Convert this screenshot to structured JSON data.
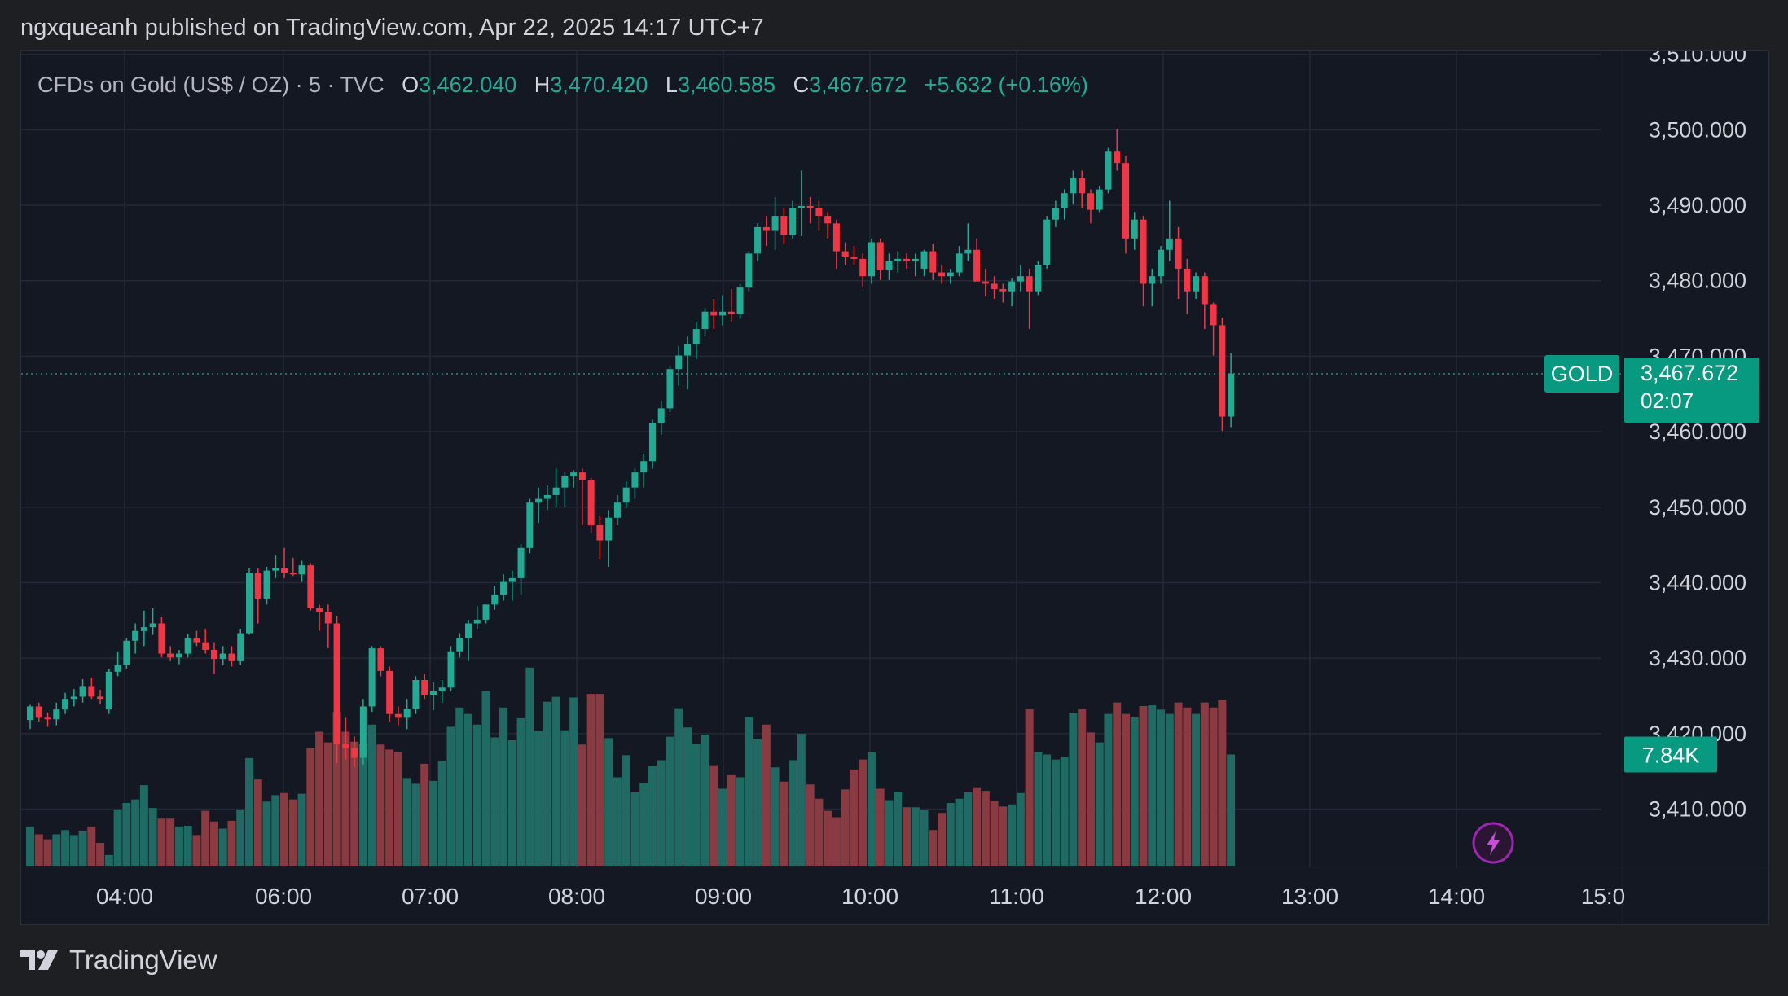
{
  "header": {
    "published_line": "ngxqueanh published on TradingView.com, Apr 22, 2025 14:17 UTC+7"
  },
  "legend": {
    "symbol_desc": "CFDs on Gold (US$ / OZ) · 5 · TVC",
    "open_label": "O",
    "open": "3,462.040",
    "high_label": "H",
    "high": "3,470.420",
    "low_label": "L",
    "low": "3,460.585",
    "close_label": "C",
    "close": "3,467.672",
    "change": "+5.632 (+0.16%)"
  },
  "price_badge": {
    "symbol": "GOLD",
    "price": "3,467.672",
    "countdown": "02:07"
  },
  "volume_badge": {
    "value": "7.84K"
  },
  "footer": {
    "brand": "TradingView"
  },
  "colors": {
    "up": "#22ab94",
    "down": "#f23645",
    "vol_up": "#1f6a63",
    "vol_down": "#8a3a41",
    "grid": "#242936",
    "background": "#141823",
    "axis_text": "#d1d4dc",
    "accent_badge": "#089981",
    "alert_ring": "#9c27b0"
  },
  "icons": {
    "logo": "tradingview-logo-icon",
    "alert": "lightning-bolt-icon"
  },
  "chart_data": {
    "type": "candlestick",
    "symbol": "TVC:GOLD",
    "interval": "5",
    "y_axis": {
      "ticks": [
        "3,410.000",
        "3,420.000",
        "3,430.000",
        "3,440.000",
        "3,450.000",
        "3,460.000",
        "3,470.000",
        "3,480.000",
        "3,490.000",
        "3,500.000",
        "3,510.000"
      ],
      "range": [
        3402.5,
        3510.4
      ]
    },
    "x_axis": {
      "ticks": [
        "04:00",
        "06:00",
        "07:00",
        "08:00",
        "09:00",
        "10:00",
        "11:00",
        "12:00",
        "13:00",
        "14:00",
        "15:0"
      ]
    },
    "last_price": 3467.672,
    "candles": [
      {
        "o": 3421.8,
        "h": 3423.8,
        "l": 3420.6,
        "c": 3423.6,
        "v": 0.55
      },
      {
        "o": 3423.6,
        "h": 3424.1,
        "l": 3421.6,
        "c": 3422.1,
        "v": 0.44
      },
      {
        "o": 3422.1,
        "h": 3422.8,
        "l": 3420.9,
        "c": 3421.9,
        "v": 0.37
      },
      {
        "o": 3421.9,
        "h": 3424.1,
        "l": 3421.1,
        "c": 3423.2,
        "v": 0.44
      },
      {
        "o": 3423.2,
        "h": 3425.4,
        "l": 3422.6,
        "c": 3424.6,
        "v": 0.5
      },
      {
        "o": 3424.6,
        "h": 3425.9,
        "l": 3423.6,
        "c": 3424.9,
        "v": 0.43
      },
      {
        "o": 3424.9,
        "h": 3427.2,
        "l": 3424.1,
        "c": 3426.3,
        "v": 0.48
      },
      {
        "o": 3426.3,
        "h": 3427.4,
        "l": 3424.6,
        "c": 3424.9,
        "v": 0.55
      },
      {
        "o": 3424.9,
        "h": 3425.8,
        "l": 3423.9,
        "c": 3424.6,
        "v": 0.32
      },
      {
        "o": 3423.2,
        "h": 3428.6,
        "l": 3422.6,
        "c": 3428.2,
        "v": 0.15
      },
      {
        "o": 3428.2,
        "h": 3430.9,
        "l": 3427.6,
        "c": 3429.1,
        "v": 0.79
      },
      {
        "o": 3429.1,
        "h": 3432.6,
        "l": 3428.6,
        "c": 3432.3,
        "v": 0.88
      },
      {
        "o": 3432.3,
        "h": 3434.6,
        "l": 3430.6,
        "c": 3433.6,
        "v": 0.93
      },
      {
        "o": 3433.6,
        "h": 3436.3,
        "l": 3431.6,
        "c": 3434.1,
        "v": 1.13
      },
      {
        "o": 3434.1,
        "h": 3436.6,
        "l": 3433.1,
        "c": 3434.6,
        "v": 0.81
      },
      {
        "o": 3434.6,
        "h": 3435.4,
        "l": 3430.1,
        "c": 3430.6,
        "v": 0.66
      },
      {
        "o": 3430.6,
        "h": 3431.6,
        "l": 3429.6,
        "c": 3430.1,
        "v": 0.66
      },
      {
        "o": 3430.1,
        "h": 3431.1,
        "l": 3429.2,
        "c": 3430.6,
        "v": 0.55
      },
      {
        "o": 3430.6,
        "h": 3433.2,
        "l": 3430.1,
        "c": 3432.6,
        "v": 0.56
      },
      {
        "o": 3432.6,
        "h": 3433.6,
        "l": 3431.6,
        "c": 3432.1,
        "v": 0.43
      },
      {
        "o": 3432.1,
        "h": 3433.9,
        "l": 3430.6,
        "c": 3431.1,
        "v": 0.77
      },
      {
        "o": 3431.1,
        "h": 3432.1,
        "l": 3427.9,
        "c": 3429.9,
        "v": 0.62
      },
      {
        "o": 3429.9,
        "h": 3431.6,
        "l": 3429.1,
        "c": 3430.6,
        "v": 0.52
      },
      {
        "o": 3430.6,
        "h": 3431.6,
        "l": 3428.9,
        "c": 3429.6,
        "v": 0.63
      },
      {
        "o": 3429.6,
        "h": 3433.9,
        "l": 3429.1,
        "c": 3433.3,
        "v": 0.79
      },
      {
        "o": 3433.3,
        "h": 3441.9,
        "l": 3433.1,
        "c": 3441.3,
        "v": 1.51
      },
      {
        "o": 3441.3,
        "h": 3441.9,
        "l": 3434.6,
        "c": 3437.9,
        "v": 1.21
      },
      {
        "o": 3437.9,
        "h": 3442.1,
        "l": 3437.1,
        "c": 3441.6,
        "v": 0.9
      },
      {
        "o": 3441.6,
        "h": 3443.6,
        "l": 3440.6,
        "c": 3441.9,
        "v": 0.99
      },
      {
        "o": 3441.9,
        "h": 3444.6,
        "l": 3440.6,
        "c": 3441.3,
        "v": 1.02
      },
      {
        "o": 3441.3,
        "h": 3443.3,
        "l": 3440.9,
        "c": 3441.1,
        "v": 0.93
      },
      {
        "o": 3441.1,
        "h": 3442.9,
        "l": 3440.1,
        "c": 3442.3,
        "v": 1.01
      },
      {
        "o": 3442.3,
        "h": 3442.6,
        "l": 3436.3,
        "c": 3436.6,
        "v": 1.65
      },
      {
        "o": 3436.6,
        "h": 3437.1,
        "l": 3433.6,
        "c": 3436.1,
        "v": 1.88
      },
      {
        "o": 3436.1,
        "h": 3437.1,
        "l": 3431.3,
        "c": 3434.6,
        "v": 1.73
      },
      {
        "o": 3434.6,
        "h": 3435.6,
        "l": 3416.1,
        "c": 3418.6,
        "v": 2.16
      },
      {
        "o": 3418.6,
        "h": 3422.1,
        "l": 3416.6,
        "c": 3418.1,
        "v": 1.88
      },
      {
        "o": 3418.1,
        "h": 3419.6,
        "l": 3415.6,
        "c": 3416.8,
        "v": 1.74
      },
      {
        "o": 3416.8,
        "h": 3424.6,
        "l": 3415.9,
        "c": 3423.6,
        "v": 1.71
      },
      {
        "o": 3423.6,
        "h": 3431.6,
        "l": 3422.9,
        "c": 3431.3,
        "v": 1.98
      },
      {
        "o": 3431.3,
        "h": 3431.6,
        "l": 3427.6,
        "c": 3428.3,
        "v": 1.7
      },
      {
        "o": 3428.3,
        "h": 3428.9,
        "l": 3421.6,
        "c": 3422.6,
        "v": 1.63
      },
      {
        "o": 3422.6,
        "h": 3423.6,
        "l": 3421.1,
        "c": 3422.1,
        "v": 1.59
      },
      {
        "o": 3422.1,
        "h": 3424.6,
        "l": 3420.6,
        "c": 3423.3,
        "v": 1.23
      },
      {
        "o": 3423.3,
        "h": 3427.6,
        "l": 3422.6,
        "c": 3427.1,
        "v": 1.15
      },
      {
        "o": 3427.1,
        "h": 3427.9,
        "l": 3424.6,
        "c": 3425.1,
        "v": 1.43
      },
      {
        "o": 3425.1,
        "h": 3426.8,
        "l": 3423.1,
        "c": 3425.6,
        "v": 1.19
      },
      {
        "o": 3425.6,
        "h": 3427.1,
        "l": 3424.1,
        "c": 3426.1,
        "v": 1.47
      },
      {
        "o": 3426.1,
        "h": 3431.6,
        "l": 3425.6,
        "c": 3430.9,
        "v": 1.95
      },
      {
        "o": 3430.9,
        "h": 3433.3,
        "l": 3430.1,
        "c": 3432.6,
        "v": 2.22
      },
      {
        "o": 3432.6,
        "h": 3435.1,
        "l": 3429.6,
        "c": 3434.6,
        "v": 2.13
      },
      {
        "o": 3434.6,
        "h": 3436.9,
        "l": 3433.9,
        "c": 3435.1,
        "v": 1.98
      },
      {
        "o": 3435.1,
        "h": 3437.1,
        "l": 3434.6,
        "c": 3437.1,
        "v": 2.45
      },
      {
        "o": 3437.1,
        "h": 3439.6,
        "l": 3436.4,
        "c": 3438.4,
        "v": 1.8
      },
      {
        "o": 3438.4,
        "h": 3441.1,
        "l": 3437.6,
        "c": 3440.1,
        "v": 2.22
      },
      {
        "o": 3440.1,
        "h": 3441.6,
        "l": 3437.6,
        "c": 3440.6,
        "v": 1.76
      },
      {
        "o": 3440.6,
        "h": 3445.1,
        "l": 3438.4,
        "c": 3444.6,
        "v": 2.07
      },
      {
        "o": 3444.6,
        "h": 3451.1,
        "l": 3443.9,
        "c": 3450.6,
        "v": 2.78
      },
      {
        "o": 3450.6,
        "h": 3452.6,
        "l": 3447.9,
        "c": 3451.1,
        "v": 1.89
      },
      {
        "o": 3451.1,
        "h": 3452.9,
        "l": 3449.6,
        "c": 3451.6,
        "v": 2.3
      },
      {
        "o": 3451.6,
        "h": 3455.1,
        "l": 3450.1,
        "c": 3452.6,
        "v": 2.37
      },
      {
        "o": 3452.6,
        "h": 3454.6,
        "l": 3450.1,
        "c": 3454.1,
        "v": 1.9
      },
      {
        "o": 3454.1,
        "h": 3454.9,
        "l": 3452.6,
        "c": 3454.6,
        "v": 2.36
      },
      {
        "o": 3454.6,
        "h": 3455.1,
        "l": 3447.6,
        "c": 3453.6,
        "v": 1.7
      },
      {
        "o": 3453.6,
        "h": 3453.9,
        "l": 3446.6,
        "c": 3447.6,
        "v": 2.41
      },
      {
        "o": 3447.6,
        "h": 3448.9,
        "l": 3443.1,
        "c": 3445.6,
        "v": 2.41
      },
      {
        "o": 3445.6,
        "h": 3449.6,
        "l": 3442.1,
        "c": 3448.6,
        "v": 1.79
      },
      {
        "o": 3448.6,
        "h": 3451.6,
        "l": 3447.6,
        "c": 3450.6,
        "v": 1.24
      },
      {
        "o": 3450.6,
        "h": 3453.4,
        "l": 3449.9,
        "c": 3452.6,
        "v": 1.55
      },
      {
        "o": 3452.6,
        "h": 3455.1,
        "l": 3451.1,
        "c": 3454.6,
        "v": 1.03
      },
      {
        "o": 3454.6,
        "h": 3457.1,
        "l": 3452.6,
        "c": 3456.1,
        "v": 1.16
      },
      {
        "o": 3456.1,
        "h": 3461.6,
        "l": 3455.1,
        "c": 3461.1,
        "v": 1.4
      },
      {
        "o": 3461.1,
        "h": 3464.1,
        "l": 3459.6,
        "c": 3463.1,
        "v": 1.48
      },
      {
        "o": 3463.1,
        "h": 3468.6,
        "l": 3462.6,
        "c": 3468.3,
        "v": 1.81
      },
      {
        "o": 3468.3,
        "h": 3471.4,
        "l": 3466.1,
        "c": 3470.1,
        "v": 2.21
      },
      {
        "o": 3470.1,
        "h": 3472.6,
        "l": 3465.6,
        "c": 3471.6,
        "v": 1.94
      },
      {
        "o": 3471.6,
        "h": 3474.6,
        "l": 3469.6,
        "c": 3473.6,
        "v": 1.71
      },
      {
        "o": 3473.6,
        "h": 3476.4,
        "l": 3472.6,
        "c": 3475.9,
        "v": 1.84
      },
      {
        "o": 3475.9,
        "h": 3477.6,
        "l": 3473.6,
        "c": 3475.4,
        "v": 1.41
      },
      {
        "o": 3475.4,
        "h": 3478.1,
        "l": 3474.1,
        "c": 3475.9,
        "v": 1.08
      },
      {
        "o": 3475.9,
        "h": 3478.9,
        "l": 3474.6,
        "c": 3475.6,
        "v": 1.27
      },
      {
        "o": 3475.6,
        "h": 3479.6,
        "l": 3474.9,
        "c": 3479.1,
        "v": 1.24
      },
      {
        "o": 3479.1,
        "h": 3483.9,
        "l": 3478.6,
        "c": 3483.6,
        "v": 2.09
      },
      {
        "o": 3483.6,
        "h": 3487.6,
        "l": 3482.6,
        "c": 3487.1,
        "v": 1.78
      },
      {
        "o": 3487.1,
        "h": 3488.6,
        "l": 3484.6,
        "c": 3486.6,
        "v": 1.98
      },
      {
        "o": 3486.6,
        "h": 3491.1,
        "l": 3484.1,
        "c": 3488.6,
        "v": 1.38
      },
      {
        "o": 3488.6,
        "h": 3489.6,
        "l": 3484.9,
        "c": 3486.1,
        "v": 1.18
      },
      {
        "o": 3486.1,
        "h": 3490.6,
        "l": 3485.6,
        "c": 3489.6,
        "v": 1.48
      },
      {
        "o": 3489.6,
        "h": 3494.6,
        "l": 3485.9,
        "c": 3489.9,
        "v": 1.85
      },
      {
        "o": 3489.9,
        "h": 3491.1,
        "l": 3487.6,
        "c": 3489.6,
        "v": 1.14
      },
      {
        "o": 3489.6,
        "h": 3490.6,
        "l": 3486.6,
        "c": 3488.6,
        "v": 0.94
      },
      {
        "o": 3488.6,
        "h": 3489.1,
        "l": 3485.6,
        "c": 3487.6,
        "v": 0.77
      },
      {
        "o": 3487.6,
        "h": 3488.1,
        "l": 3481.6,
        "c": 3483.9,
        "v": 0.68
      },
      {
        "o": 3483.9,
        "h": 3485.1,
        "l": 3482.1,
        "c": 3483.1,
        "v": 1.07
      },
      {
        "o": 3483.1,
        "h": 3484.6,
        "l": 3482.1,
        "c": 3482.9,
        "v": 1.35
      },
      {
        "o": 3482.9,
        "h": 3483.6,
        "l": 3479.1,
        "c": 3480.6,
        "v": 1.49
      },
      {
        "o": 3480.6,
        "h": 3485.6,
        "l": 3479.6,
        "c": 3485.1,
        "v": 1.6
      },
      {
        "o": 3485.1,
        "h": 3485.6,
        "l": 3480.1,
        "c": 3481.4,
        "v": 1.08
      },
      {
        "o": 3481.4,
        "h": 3483.6,
        "l": 3480.1,
        "c": 3482.6,
        "v": 0.92
      },
      {
        "o": 3482.6,
        "h": 3483.9,
        "l": 3481.1,
        "c": 3482.9,
        "v": 1.04
      },
      {
        "o": 3482.9,
        "h": 3483.6,
        "l": 3481.6,
        "c": 3482.6,
        "v": 0.82
      },
      {
        "o": 3482.6,
        "h": 3483.6,
        "l": 3480.6,
        "c": 3482.9,
        "v": 0.82
      },
      {
        "o": 3481.6,
        "h": 3484.1,
        "l": 3480.6,
        "c": 3483.9,
        "v": 0.78
      },
      {
        "o": 3483.9,
        "h": 3484.9,
        "l": 3480.1,
        "c": 3481.1,
        "v": 0.5
      },
      {
        "o": 3481.1,
        "h": 3482.1,
        "l": 3479.6,
        "c": 3480.6,
        "v": 0.74
      },
      {
        "o": 3480.6,
        "h": 3481.6,
        "l": 3479.6,
        "c": 3481.1,
        "v": 0.88
      },
      {
        "o": 3481.1,
        "h": 3484.6,
        "l": 3480.6,
        "c": 3483.6,
        "v": 0.94
      },
      {
        "o": 3483.6,
        "h": 3487.6,
        "l": 3482.6,
        "c": 3484.1,
        "v": 1.03
      },
      {
        "o": 3484.1,
        "h": 3485.6,
        "l": 3480.6,
        "c": 3479.9,
        "v": 1.1
      },
      {
        "o": 3479.9,
        "h": 3481.6,
        "l": 3477.9,
        "c": 3479.6,
        "v": 1.05
      },
      {
        "o": 3479.6,
        "h": 3480.6,
        "l": 3477.6,
        "c": 3478.9,
        "v": 0.91
      },
      {
        "o": 3478.9,
        "h": 3479.6,
        "l": 3477.1,
        "c": 3478.6,
        "v": 0.83
      },
      {
        "o": 3478.6,
        "h": 3480.4,
        "l": 3476.6,
        "c": 3479.9,
        "v": 0.86
      },
      {
        "o": 3479.9,
        "h": 3482.1,
        "l": 3478.6,
        "c": 3480.6,
        "v": 1.02
      },
      {
        "o": 3480.6,
        "h": 3481.6,
        "l": 3473.6,
        "c": 3478.6,
        "v": 2.2
      },
      {
        "o": 3478.6,
        "h": 3482.6,
        "l": 3478.1,
        "c": 3482.1,
        "v": 1.59
      },
      {
        "o": 3482.1,
        "h": 3488.6,
        "l": 3481.6,
        "c": 3488.1,
        "v": 1.56
      },
      {
        "o": 3488.1,
        "h": 3490.6,
        "l": 3487.1,
        "c": 3489.6,
        "v": 1.49
      },
      {
        "o": 3489.6,
        "h": 3492.1,
        "l": 3488.1,
        "c": 3491.6,
        "v": 1.53
      },
      {
        "o": 3491.6,
        "h": 3494.6,
        "l": 3490.1,
        "c": 3493.6,
        "v": 2.14
      },
      {
        "o": 3493.6,
        "h": 3494.6,
        "l": 3489.6,
        "c": 3491.6,
        "v": 2.2
      },
      {
        "o": 3491.6,
        "h": 3492.1,
        "l": 3487.6,
        "c": 3489.4,
        "v": 1.87
      },
      {
        "o": 3489.4,
        "h": 3492.6,
        "l": 3489.1,
        "c": 3492.1,
        "v": 1.73
      },
      {
        "o": 3492.1,
        "h": 3497.6,
        "l": 3491.6,
        "c": 3497.1,
        "v": 2.13
      },
      {
        "o": 3497.1,
        "h": 3500.1,
        "l": 3494.6,
        "c": 3495.6,
        "v": 2.29
      },
      {
        "o": 3495.6,
        "h": 3496.6,
        "l": 3483.6,
        "c": 3485.6,
        "v": 2.13
      },
      {
        "o": 3485.6,
        "h": 3489.1,
        "l": 3484.1,
        "c": 3488.1,
        "v": 2.08
      },
      {
        "o": 3488.1,
        "h": 3488.6,
        "l": 3476.6,
        "c": 3479.6,
        "v": 2.24
      },
      {
        "o": 3479.6,
        "h": 3481.6,
        "l": 3476.6,
        "c": 3480.6,
        "v": 2.25
      },
      {
        "o": 3480.6,
        "h": 3484.6,
        "l": 3479.6,
        "c": 3484.1,
        "v": 2.19
      },
      {
        "o": 3484.1,
        "h": 3490.6,
        "l": 3482.6,
        "c": 3485.6,
        "v": 2.13
      },
      {
        "o": 3485.6,
        "h": 3487.1,
        "l": 3477.6,
        "c": 3481.6,
        "v": 2.29
      },
      {
        "o": 3481.6,
        "h": 3482.9,
        "l": 3475.6,
        "c": 3478.6,
        "v": 2.22
      },
      {
        "o": 3478.6,
        "h": 3481.1,
        "l": 3477.6,
        "c": 3480.6,
        "v": 2.13
      },
      {
        "o": 3480.6,
        "h": 3481.1,
        "l": 3473.6,
        "c": 3476.9,
        "v": 2.29
      },
      {
        "o": 3476.9,
        "h": 3477.1,
        "l": 3470.1,
        "c": 3474.1,
        "v": 2.22
      },
      {
        "o": 3474.1,
        "h": 3475.1,
        "l": 3460.1,
        "c": 3462.0,
        "v": 2.33
      },
      {
        "o": 3462.0,
        "h": 3470.4,
        "l": 3460.6,
        "c": 3467.7,
        "v": 1.56
      }
    ]
  }
}
